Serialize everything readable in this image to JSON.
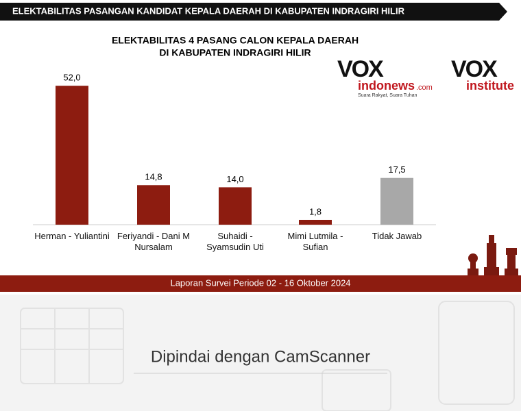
{
  "chart_data": {
    "type": "bar",
    "banner": "ELEKTABILITAS PASANGAN KANDIDAT KEPALA  DAERAH DI KABUPATEN INDRAGIRI HILIR",
    "title": "ELEKTABILITAS 4 PASANG CALON KEPALA DAERAH",
    "subtitle": "DI KABUPATEN INDRAGIRI HILIR",
    "categories": [
      "Herman - Yuliantini",
      "Feriyandi - Dani M\nNursalam",
      "Suhaidi -\nSyamsudin Uti",
      "Mimi Lutmila -\nSufian",
      "Tidak Jawab"
    ],
    "values": [
      52.0,
      14.8,
      14.0,
      1.8,
      17.5
    ],
    "value_labels": [
      "52,0",
      "14,8",
      "14,0",
      "1,8",
      "17,5"
    ],
    "colors": [
      "#8d1c10",
      "#8d1c10",
      "#8d1c10",
      "#8d1c10",
      "#a8a8a8"
    ],
    "ylim": [
      0,
      55
    ],
    "logos": [
      "VOX",
      "indonews",
      ".com",
      "Suara Rakyat, Suara Tuhan",
      "VOX",
      "institute"
    ],
    "footer": "Laporan Survei Periode 02 - 16 Oktober 2024",
    "watermark": "Dipindai dengan CamScanner"
  }
}
